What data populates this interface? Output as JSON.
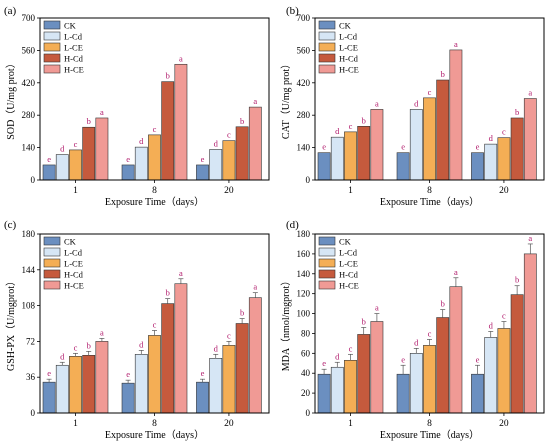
{
  "chart_data": [
    {
      "type": "bar",
      "panel_label": "(a)",
      "categories": [
        "1",
        "8",
        "20"
      ],
      "xlabel": "Exposure Time（days）",
      "ylabel": "SOD（U/mg prot）",
      "ylim": [
        0,
        700
      ],
      "yticks": [
        "0",
        "140",
        "280",
        "420",
        "560",
        "700"
      ],
      "series": [
        {
          "name": "CK",
          "values": [
            65,
            65,
            65
          ],
          "errors": [
            0,
            0,
            0
          ],
          "letters": [
            "e",
            "e",
            "e"
          ]
        },
        {
          "name": "L-Cd",
          "values": [
            110,
            142,
            132
          ],
          "errors": [
            0,
            0,
            0
          ],
          "letters": [
            "d",
            "d",
            "d"
          ]
        },
        {
          "name": "L-CE",
          "values": [
            130,
            195,
            170
          ],
          "errors": [
            0,
            0,
            0
          ],
          "letters": [
            "c",
            "c",
            "c"
          ]
        },
        {
          "name": "H-Cd",
          "values": [
            228,
            425,
            230
          ],
          "errors": [
            0,
            0,
            0
          ],
          "letters": [
            "b",
            "b",
            "b"
          ]
        },
        {
          "name": "H-CE",
          "values": [
            268,
            500,
            315
          ],
          "errors": [
            0,
            0,
            0
          ],
          "letters": [
            "a",
            "a",
            "a"
          ]
        }
      ]
    },
    {
      "type": "bar",
      "panel_label": "(b)",
      "categories": [
        "1",
        "8",
        "20"
      ],
      "xlabel": "Exposure Time（days）",
      "ylabel": "CAT（U/mg prot）",
      "ylim": [
        0,
        700
      ],
      "yticks": [
        "0",
        "140",
        "280",
        "420",
        "560",
        "700"
      ],
      "series": [
        {
          "name": "CK",
          "values": [
            118,
            118,
            118
          ],
          "errors": [
            0,
            0,
            0
          ],
          "letters": [
            "e",
            "e",
            "e"
          ]
        },
        {
          "name": "L-Cd",
          "values": [
            185,
            305,
            155
          ],
          "errors": [
            0,
            0,
            0
          ],
          "letters": [
            "d",
            "d",
            "d"
          ]
        },
        {
          "name": "L-CE",
          "values": [
            208,
            355,
            183
          ],
          "errors": [
            0,
            0,
            0
          ],
          "letters": [
            "c",
            "c",
            "c"
          ]
        },
        {
          "name": "H-Cd",
          "values": [
            232,
            432,
            268
          ],
          "errors": [
            0,
            0,
            0
          ],
          "letters": [
            "b",
            "b",
            "b"
          ]
        },
        {
          "name": "H-CE",
          "values": [
            305,
            562,
            352
          ],
          "errors": [
            0,
            0,
            0
          ],
          "letters": [
            "a",
            "a",
            "a"
          ]
        }
      ]
    },
    {
      "type": "bar",
      "panel_label": "(c)",
      "categories": [
        "1",
        "8",
        "20"
      ],
      "xlabel": "Exposure Time（days）",
      "ylabel": "GSH-PX（U/mgprot）",
      "ylim": [
        0,
        180
      ],
      "yticks": [
        "0",
        "36",
        "72",
        "108",
        "144",
        "180"
      ],
      "series": [
        {
          "name": "CK",
          "values": [
            31,
            30,
            31
          ],
          "errors": [
            3,
            3,
            3
          ],
          "letters": [
            "e",
            "e",
            "e"
          ]
        },
        {
          "name": "L-Cd",
          "values": [
            48,
            59,
            55
          ],
          "errors": [
            3,
            4,
            4
          ],
          "letters": [
            "d",
            "d",
            "d"
          ]
        },
        {
          "name": "L-CE",
          "values": [
            57,
            78,
            68
          ],
          "errors": [
            3,
            5,
            4
          ],
          "letters": [
            "c",
            "c",
            "c"
          ]
        },
        {
          "name": "H-Cd",
          "values": [
            58,
            110,
            90
          ],
          "errors": [
            4,
            5,
            5
          ],
          "letters": [
            "b",
            "b",
            "b"
          ]
        },
        {
          "name": "H-CE",
          "values": [
            72,
            130,
            116
          ],
          "errors": [
            3,
            5,
            5
          ],
          "letters": [
            "a",
            "a",
            "a"
          ]
        }
      ]
    },
    {
      "type": "bar",
      "panel_label": "(d)",
      "categories": [
        "1",
        "8",
        "20"
      ],
      "xlabel": "Exposure Time（days）",
      "ylabel": "MDA（nmol/mgprot）",
      "ylim": [
        0,
        180
      ],
      "yticks": [
        "0",
        "20",
        "40",
        "60",
        "80",
        "100",
        "120",
        "140",
        "160",
        "180"
      ],
      "series": [
        {
          "name": "CK",
          "values": [
            39,
            39,
            39
          ],
          "errors": [
            5,
            9,
            9
          ],
          "letters": [
            "e",
            "e",
            "e"
          ]
        },
        {
          "name": "L-Cd",
          "values": [
            46,
            60,
            76
          ],
          "errors": [
            5,
            5,
            6
          ],
          "letters": [
            "d",
            "d",
            "d"
          ]
        },
        {
          "name": "L-CE",
          "values": [
            53,
            68,
            85
          ],
          "errors": [
            6,
            6,
            7
          ],
          "letters": [
            "c",
            "c",
            "c"
          ]
        },
        {
          "name": "H-Cd",
          "values": [
            79,
            96,
            119
          ],
          "errors": [
            7,
            8,
            9
          ],
          "letters": [
            "b",
            "b",
            "b"
          ]
        },
        {
          "name": "H-CE",
          "values": [
            92,
            127,
            160
          ],
          "errors": [
            8,
            9,
            10
          ],
          "letters": [
            "a",
            "a",
            "a"
          ]
        }
      ]
    }
  ],
  "colors": {
    "CK": "#6b8fc0",
    "L-Cd": "#d6e6f5",
    "L-CE": "#f4ae55",
    "H-Cd": "#c55a3d",
    "H-CE": "#f09a95",
    "letter": "#b0186a"
  }
}
